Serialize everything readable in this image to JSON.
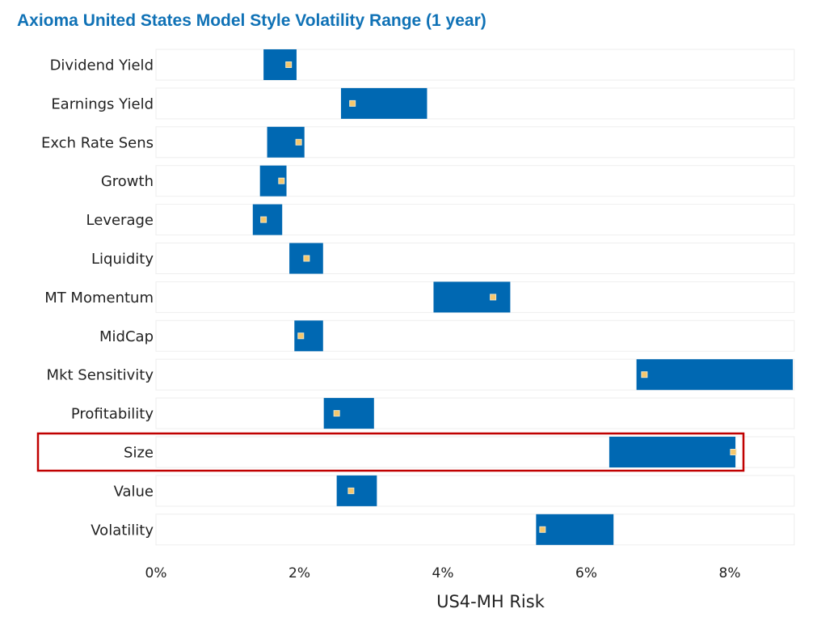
{
  "title": "Axioma United States Model Style Volatility Range (1 year)",
  "colors": {
    "range_bar": "#0068b2",
    "current_marker_fill": "#f5c76c",
    "current_marker_stroke": "#f0e4c4",
    "background_bar": "#ffffff",
    "background_bar_border": "#eeeeee",
    "highlight_box": "#c00000",
    "title": "#1072b6"
  },
  "chart_data": {
    "type": "bar",
    "orientation": "horizontal",
    "title": "Axioma United States Model Style Volatility Range (1 year)",
    "xlabel": "US4-MH Risk",
    "ylabel": "",
    "xlim": [
      0,
      0.089
    ],
    "xticks": [
      0,
      0.02,
      0.04,
      0.06,
      0.08
    ],
    "xtick_labels": [
      "0%",
      "2%",
      "4%",
      "6%",
      "8%"
    ],
    "grid": false,
    "legend": "none",
    "highlighted_category": "Size",
    "categories": [
      "Dividend Yield",
      "Earnings Yield",
      "Exch Rate Sens",
      "Growth",
      "Leverage",
      "Liquidity",
      "MT Momentum",
      "MidCap",
      "Mkt Sensitivity",
      "Profitability",
      "Size",
      "Value",
      "Volatility"
    ],
    "series": [
      {
        "values": [
          0.015,
          0.0258,
          0.0155,
          0.0145,
          0.0135,
          0.0186,
          0.0387,
          0.0193,
          0.067,
          0.0234,
          0.0632,
          0.0252,
          0.053
        ]
      },
      {
        "values": [
          0.0196,
          0.0378,
          0.0207,
          0.0182,
          0.0176,
          0.0233,
          0.0494,
          0.0233,
          0.0888,
          0.0304,
          0.0808,
          0.0308,
          0.0638
        ]
      },
      {
        "values": [
          0.0185,
          0.0274,
          0.0199,
          0.0175,
          0.015,
          0.021,
          0.047,
          0.0202,
          0.0681,
          0.0252,
          0.0805,
          0.0272,
          0.0539
        ]
      }
    ]
  }
}
